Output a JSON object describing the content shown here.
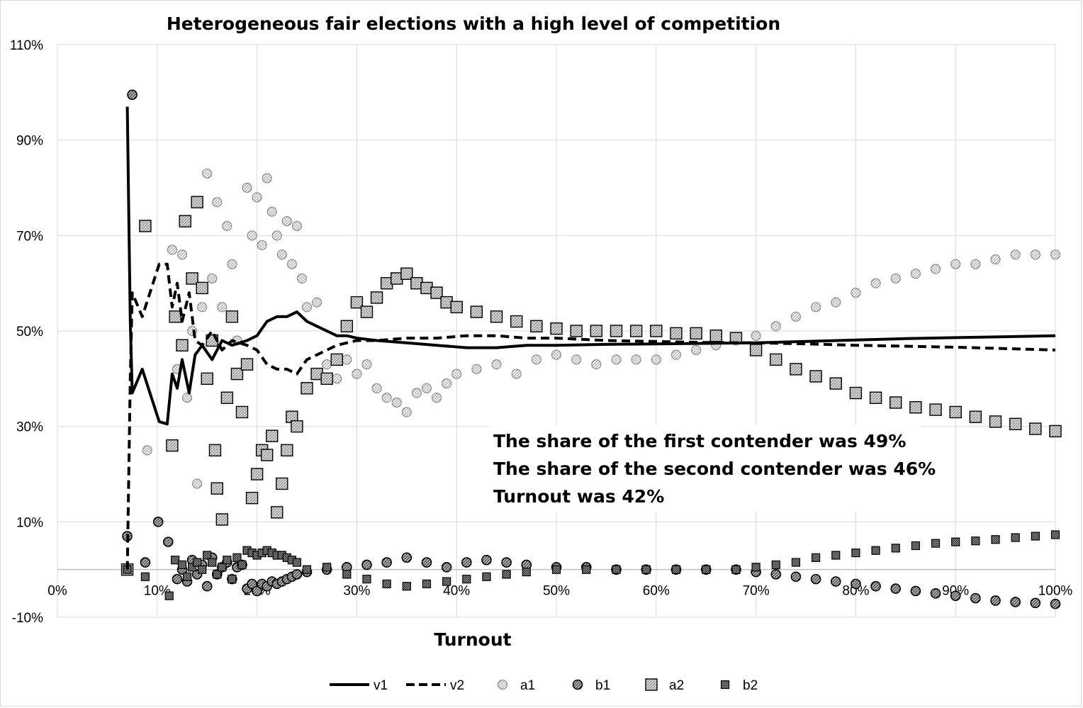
{
  "chart_data": {
    "type": "scatter",
    "title": "Heterogeneous fair elections with a high level of competition",
    "xlabel": "Turnout",
    "ylabel": "",
    "xlim": [
      0,
      100
    ],
    "ylim": [
      -10,
      110
    ],
    "x_ticks": [
      0,
      10,
      20,
      30,
      40,
      50,
      60,
      70,
      80,
      90,
      100
    ],
    "x_tick_labels": [
      "0%",
      "10%",
      "20%",
      "30%",
      "40%",
      "50%",
      "60%",
      "70%",
      "80%",
      "90%",
      "100%"
    ],
    "y_ticks": [
      -10,
      10,
      30,
      50,
      70,
      90,
      110
    ],
    "y_tick_labels": [
      "-10%",
      "10%",
      "30%",
      "50%",
      "70%",
      "90%",
      "110%"
    ],
    "grid": true,
    "legend_position": "bottom",
    "annotations": [
      "The share of the first contender was 49%",
      "The share of the second contender was 46%",
      "Turnout was 42%"
    ],
    "series": [
      {
        "name": "v1",
        "style": "solid-line",
        "x": [
          7,
          7.3,
          7.5,
          8.5,
          10.2,
          11,
          11.5,
          12,
          12.5,
          13.2,
          13.8,
          14.5,
          15.5,
          16.5,
          17.5,
          19,
          20,
          21,
          22,
          23,
          24,
          25,
          26,
          27,
          28,
          29,
          30,
          32,
          35,
          38,
          41,
          44,
          47,
          50,
          55,
          60,
          65,
          70,
          75,
          80,
          85,
          90,
          95,
          100
        ],
        "y": [
          97,
          52,
          37,
          42,
          31,
          30.5,
          41,
          38,
          44,
          37,
          45,
          47,
          44,
          48,
          47,
          48,
          49,
          52,
          53,
          53,
          54,
          52,
          51,
          50,
          49,
          49,
          48.5,
          48,
          47.5,
          47,
          46.5,
          46.5,
          47,
          47,
          47.2,
          47.3,
          47.4,
          47.5,
          47.8,
          48.1,
          48.4,
          48.6,
          48.8,
          49
        ]
      },
      {
        "name": "v2",
        "style": "dashed-line",
        "x": [
          7,
          7.3,
          7.5,
          8.5,
          10.2,
          11,
          11.5,
          12,
          12.5,
          13.2,
          13.8,
          14.5,
          15.5,
          16.5,
          17.5,
          19,
          20,
          21,
          22,
          23,
          24,
          25,
          26,
          27,
          28,
          29,
          30,
          32,
          35,
          38,
          41,
          44,
          47,
          50,
          55,
          60,
          65,
          70,
          75,
          80,
          85,
          90,
          95,
          100
        ],
        "y": [
          0,
          40,
          58,
          53,
          64,
          64,
          55,
          60,
          52,
          58,
          48,
          47,
          50,
          46,
          48,
          47,
          46,
          43,
          42,
          42,
          41,
          44,
          45,
          46,
          47,
          47.5,
          48,
          48,
          48.5,
          48.5,
          49,
          49,
          48.5,
          48.5,
          48,
          47.8,
          47.6,
          47.5,
          47.3,
          47,
          46.8,
          46.6,
          46.3,
          46
        ]
      },
      {
        "name": "a1",
        "marker": "circle-light-hatch",
        "x": [
          9,
          11.5,
          12,
          12.5,
          13,
          13.5,
          14,
          14.5,
          15,
          15.5,
          16,
          16.5,
          17,
          17.5,
          18,
          19,
          19.5,
          20,
          20.5,
          21,
          21.5,
          22,
          22.5,
          23,
          23.5,
          24,
          24.5,
          25,
          26,
          27,
          28,
          29,
          30,
          31,
          32,
          33,
          34,
          35,
          36,
          37,
          38,
          39,
          40,
          42,
          44,
          46,
          48,
          50,
          52,
          54,
          56,
          58,
          60,
          62,
          64,
          66,
          68,
          70,
          72,
          74,
          76,
          78,
          80,
          82,
          84,
          86,
          88,
          90,
          92,
          94,
          96,
          98,
          100
        ],
        "y": [
          25,
          67,
          42,
          66,
          36,
          50,
          18,
          55,
          83,
          61,
          77,
          55,
          72,
          64,
          48,
          80,
          70,
          78,
          68,
          82,
          75,
          70,
          66,
          73,
          64,
          72,
          61,
          55,
          56,
          43,
          40,
          44,
          41,
          43,
          38,
          36,
          35,
          33,
          37,
          38,
          36,
          39,
          41,
          42,
          43,
          41,
          44,
          45,
          44,
          43,
          44,
          44,
          44,
          45,
          46,
          47,
          48,
          49,
          51,
          53,
          55,
          56,
          58,
          60,
          61,
          62,
          63,
          64,
          64,
          65,
          66,
          66,
          66
        ]
      },
      {
        "name": "b1",
        "marker": "circle-dark-hatch",
        "x": [
          7,
          7.5,
          8.8,
          10.1,
          11.1,
          12,
          12.5,
          13,
          13.5,
          14,
          14.5,
          15,
          15.5,
          16,
          16.5,
          17,
          17.5,
          18,
          18.5,
          19,
          19.5,
          20,
          20.5,
          21,
          21.5,
          22,
          22.5,
          23,
          23.5,
          24,
          25,
          27,
          29,
          31,
          33,
          35,
          37,
          39,
          41,
          43,
          45,
          47,
          50,
          53,
          56,
          59,
          62,
          65,
          68,
          70,
          72,
          74,
          76,
          78,
          80,
          82,
          84,
          86,
          88,
          90,
          92,
          94,
          96,
          98,
          100
        ],
        "y": [
          7,
          99.5,
          1.5,
          10,
          5.8,
          -2,
          0,
          -2.5,
          2,
          -1,
          1,
          -3.5,
          2.5,
          -1,
          0.5,
          1.5,
          -2,
          0.5,
          1,
          -4,
          -3,
          -4.5,
          -3,
          -3.5,
          -2.5,
          -3,
          -2.5,
          -2,
          -1.5,
          -1,
          -0.5,
          0,
          0.5,
          1,
          1.5,
          2.5,
          1.5,
          0.5,
          1.5,
          2,
          1.5,
          1,
          0.5,
          0.5,
          0,
          0,
          0,
          0,
          0,
          -0.5,
          -1,
          -1.5,
          -2,
          -2.5,
          -3,
          -3.5,
          -4,
          -4.5,
          -5,
          -5.5,
          -6,
          -6.5,
          -6.8,
          -7,
          -7.2
        ]
      },
      {
        "name": "a2",
        "marker": "square-light-hatch",
        "x": [
          7,
          8.8,
          11.5,
          11.8,
          12.5,
          12.8,
          13.5,
          14,
          14.5,
          15,
          15.5,
          15.8,
          16,
          16.5,
          17,
          17.5,
          18,
          18.5,
          19,
          19.5,
          20,
          20.5,
          21,
          21.5,
          22,
          22.5,
          23,
          23.5,
          24,
          25,
          26,
          27,
          28,
          29,
          30,
          31,
          32,
          33,
          34,
          35,
          36,
          37,
          38,
          39,
          40,
          42,
          44,
          46,
          48,
          50,
          52,
          54,
          56,
          58,
          60,
          62,
          64,
          66,
          68,
          70,
          72,
          74,
          76,
          78,
          80,
          82,
          84,
          86,
          88,
          90,
          92,
          94,
          96,
          98,
          100
        ],
        "y": [
          0,
          72,
          26,
          53,
          47,
          73,
          61,
          77,
          59,
          40,
          48,
          25,
          17,
          10.5,
          36,
          53,
          41,
          33,
          43,
          15,
          20,
          25,
          24,
          28,
          12,
          18,
          25,
          32,
          30,
          38,
          41,
          40,
          44,
          51,
          56,
          54,
          57,
          60,
          61,
          62,
          60,
          59,
          58,
          56,
          55,
          54,
          53,
          52,
          51,
          50.5,
          50,
          50,
          50,
          50,
          50,
          49.5,
          49.5,
          49,
          48.5,
          46,
          44,
          42,
          40.5,
          39,
          37,
          36,
          35,
          34,
          33.5,
          33,
          32,
          31,
          30.5,
          29.5,
          29
        ]
      },
      {
        "name": "b2",
        "marker": "square-dark-hatch",
        "x": [
          7,
          8.8,
          11.2,
          11.8,
          12.5,
          13,
          13.5,
          14,
          14.5,
          15,
          15.5,
          16,
          16.5,
          17,
          17.5,
          18,
          18.5,
          19,
          19.5,
          20,
          20.5,
          21,
          21.5,
          22,
          22.5,
          23,
          23.5,
          24,
          25,
          27,
          29,
          31,
          33,
          35,
          37,
          39,
          41,
          43,
          45,
          47,
          50,
          53,
          56,
          59,
          62,
          65,
          68,
          70,
          72,
          74,
          76,
          78,
          80,
          82,
          84,
          86,
          88,
          90,
          92,
          94,
          96,
          98,
          100
        ],
        "y": [
          0,
          -1.5,
          -5.5,
          2,
          1,
          -1.5,
          0.5,
          1.5,
          0,
          3,
          1.5,
          -1,
          0.5,
          2,
          -2,
          2.5,
          1,
          4,
          3.5,
          3,
          3.5,
          4,
          3.5,
          3,
          3,
          2.5,
          2,
          1.5,
          0,
          0.5,
          -1,
          -2,
          -3,
          -3.5,
          -3,
          -2.5,
          -2,
          -1.5,
          -1,
          -0.5,
          0,
          0,
          0,
          0,
          0,
          0,
          0,
          0.5,
          1,
          1.5,
          2.5,
          3,
          3.5,
          4,
          4.5,
          5,
          5.5,
          5.8,
          6,
          6.3,
          6.7,
          7,
          7.3
        ]
      }
    ]
  }
}
